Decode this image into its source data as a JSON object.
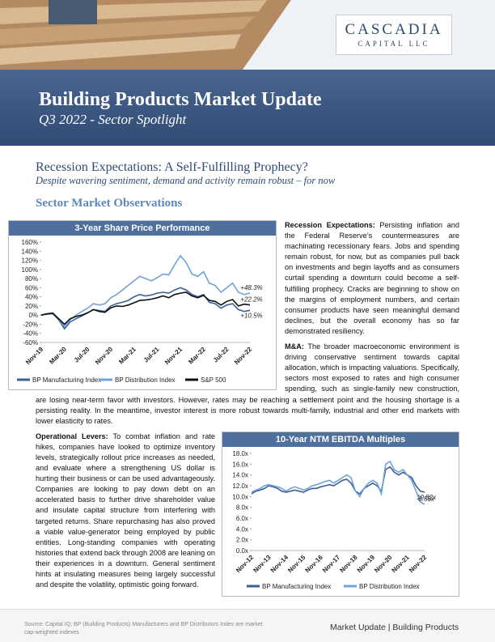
{
  "header": {
    "logo_main": "CASCADIA",
    "logo_sub": "CAPITAL LLC",
    "title": "Building Products Market Update",
    "subtitle": "Q3 2022 - Sector Spotlight"
  },
  "heading": "Recession Expectations: A Self-Fulfilling Prophecy?",
  "subheading": "Despite wavering sentiment, demand and activity remain robust – for now",
  "section_title": "Sector Market Observations",
  "paragraphs": [
    {
      "lead": "Recession Expectations:",
      "text": "Persisting inflation and the Federal Reserve’s countermeasures are machinating recessionary fears. Jobs and spending remain robust, for now, but as companies pull back on investments and begin layoffs and as consumers curtail spending a downturn could become a self-fulfilling prophecy. Cracks are beginning to show on the margins of employment numbers, and certain consumer products have seen meaningful demand declines, but the overall economy has so far demonstrated resiliency."
    },
    {
      "lead": "M&A:",
      "text": "The broader macroeconomic environment is driving conservative sentiment towards capital allocation, which is impacting valuations. Specifically, sectors most exposed to rates and high consumer spending, such as single-family new construction, are losing near-term favor with investors. However, rates may be reaching a settlement point and the housing shortage is a persisting reality. In the meantime, investor interest is more robust towards multi-family, industrial and other end markets with lower elasticity to rates."
    },
    {
      "lead": "Operational Levers:",
      "text": "To combat inflation and rate hikes, companies have looked to optimize inventory levels, strategically rollout price increases as needed, and evaluate where a strengthening US dollar is hurting their business or can be used advantageously. Companies are looking to pay down debt on an accelerated basis to further drive shareholder value and insulate capital structure from interfering with targeted returns. Share repurchasing has also proved a viable value-generator being employed by public entities. Long-standing companies with operating histories that extend back through 2008 are leaning on their experiences in a downturn. General sentiment hints at insulating measures being largely successful and despite the volatility, optimistic going forward."
    }
  ],
  "footer": {
    "source": "Source: Capital IQ; BP (Building Products) Manufacturers and BP Distributors Index are market cap-weighted indexes",
    "tagline": "Market Update | Building Products"
  },
  "chart_data": [
    {
      "type": "line",
      "title": "3-Year Share Price Performance",
      "categories": [
        "Nov-19",
        null,
        null,
        null,
        "Mar-20",
        null,
        null,
        null,
        "Jul-20",
        null,
        null,
        null,
        "Nov-20",
        null,
        null,
        null,
        "Mar-21",
        null,
        null,
        null,
        "Jul-21",
        null,
        null,
        null,
        "Nov-21",
        null,
        null,
        null,
        "Mar-22",
        null,
        null,
        null,
        "Jul-22",
        null,
        null,
        null,
        "Nov-22"
      ],
      "ylim": [
        -60,
        160
      ],
      "yticks": [
        {
          "value": -60,
          "label": "-60%"
        },
        {
          "value": -40,
          "label": "-40%"
        },
        {
          "value": -20,
          "label": "-20%"
        },
        {
          "value": 0,
          "label": "0%"
        },
        {
          "value": 20,
          "label": "20%"
        },
        {
          "value": 40,
          "label": "40%"
        },
        {
          "value": 60,
          "label": "60%"
        },
        {
          "value": 80,
          "label": "80%"
        },
        {
          "value": 100,
          "label": "100%"
        },
        {
          "value": 120,
          "label": "120%"
        },
        {
          "value": 140,
          "label": "140%"
        },
        {
          "value": 160,
          "label": "160%"
        }
      ],
      "series": [
        {
          "name": "BP Manufacturing Index",
          "color": "#3b5f95",
          "end_label": "+10.5%",
          "values": [
            0,
            2,
            3,
            -10,
            -30,
            -15,
            -8,
            -2,
            5,
            12,
            10,
            8,
            20,
            25,
            28,
            32,
            40,
            45,
            42,
            44,
            48,
            50,
            48,
            55,
            60,
            55,
            45,
            40,
            45,
            28,
            25,
            15,
            22,
            25,
            12,
            8,
            10.5
          ]
        },
        {
          "name": "BP Distribution Index",
          "color": "#6fa3dc",
          "end_label": "+48.3%",
          "values": [
            0,
            3,
            5,
            -8,
            -25,
            -10,
            0,
            8,
            15,
            25,
            22,
            25,
            38,
            45,
            55,
            65,
            75,
            85,
            80,
            75,
            82,
            90,
            88,
            110,
            130,
            115,
            90,
            85,
            95,
            70,
            65,
            50,
            60,
            70,
            50,
            45,
            48.3
          ]
        },
        {
          "name": "S&P 500",
          "color": "#111111",
          "end_label": "+22.2%",
          "values": [
            0,
            3,
            4,
            -8,
            -20,
            -8,
            -3,
            0,
            5,
            12,
            8,
            6,
            16,
            20,
            19,
            22,
            27,
            32,
            33,
            35,
            38,
            42,
            38,
            45,
            48,
            50,
            42,
            38,
            43,
            32,
            30,
            22,
            30,
            34,
            20,
            24,
            22.2
          ]
        }
      ]
    },
    {
      "type": "line",
      "title": "10-Year NTM EBITDA Multiples",
      "categories": [
        "Nov-12",
        null,
        null,
        null,
        "Nov-13",
        null,
        null,
        null,
        "Nov-14",
        null,
        null,
        null,
        "Nov-15",
        null,
        null,
        null,
        "Nov-16",
        null,
        null,
        null,
        "Nov-17",
        null,
        null,
        null,
        "Nov-18",
        null,
        null,
        null,
        "Nov-19",
        null,
        null,
        null,
        "Nov-20",
        null,
        null,
        null,
        "Nov-21",
        null,
        null,
        null,
        "Nov-22"
      ],
      "ylim": [
        0,
        18
      ],
      "yticks": [
        {
          "value": 0,
          "label": "0.0x"
        },
        {
          "value": 2,
          "label": "2.0x"
        },
        {
          "value": 4,
          "label": "4.0x"
        },
        {
          "value": 6,
          "label": "6.0x"
        },
        {
          "value": 8,
          "label": "8.0x"
        },
        {
          "value": 10,
          "label": "10.0x"
        },
        {
          "value": 12,
          "label": "12.0x"
        },
        {
          "value": 14,
          "label": "14.0x"
        },
        {
          "value": 16,
          "label": "16.0x"
        },
        {
          "value": 18,
          "label": "18.0x"
        }
      ],
      "series": [
        {
          "name": "BP Manufacturing Index",
          "color": "#3b5f95",
          "end_label": "10.82x",
          "values": [
            10.5,
            11,
            11.2,
            11.5,
            12,
            11.8,
            11.5,
            11,
            10.8,
            11,
            11.2,
            11,
            10.8,
            11.2,
            11.5,
            11.5,
            11.8,
            12,
            12.2,
            12,
            12.5,
            13,
            13.2,
            12.5,
            11,
            10.5,
            11.5,
            12,
            12.5,
            12,
            11,
            15,
            15.5,
            14.5,
            14,
            14.5,
            14,
            13.5,
            12,
            11,
            10.82
          ]
        },
        {
          "name": "BP Distribution Index",
          "color": "#6fa3dc",
          "end_label": "8.56x",
          "values": [
            10.8,
            11.2,
            11.5,
            12,
            12.2,
            12,
            11.8,
            11.5,
            11,
            11.5,
            11.8,
            11.5,
            11.2,
            11.5,
            12,
            12.2,
            12.5,
            12.8,
            13,
            12.5,
            13,
            13.5,
            14,
            13.5,
            11,
            10,
            11.5,
            12.5,
            13,
            12.5,
            10.5,
            16,
            16.5,
            15,
            14.5,
            15,
            14,
            13,
            11,
            9,
            8.56
          ]
        }
      ]
    }
  ]
}
